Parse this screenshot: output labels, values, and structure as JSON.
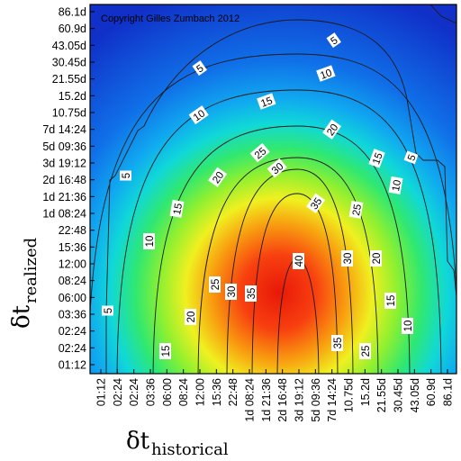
{
  "chart_data": {
    "type": "heatmap",
    "annotation": "Copyright Gilles Zumbach 2012",
    "xlabel": {
      "symbol": "δt",
      "subscript": "historical"
    },
    "ylabel": {
      "symbol": "δt",
      "subscript": "realized"
    },
    "x_ticks": [
      "01:12",
      "02:24",
      "02:24",
      "03:36",
      "06:00",
      "08:24",
      "12:00",
      "15:36",
      "22:48",
      "1d 08:24",
      "1d 21:36",
      "2d 16:48",
      "3d 19:12",
      "5d 09:36",
      "7d 14:24",
      "10.75d",
      "15.2d",
      "21.55d",
      "30.45d",
      "43.05d",
      "60.9d",
      "86.1d"
    ],
    "y_ticks": [
      "86.1d",
      "60.9d",
      "43.05d",
      "30.45d",
      "21.55d",
      "15.2d",
      "10.75d",
      "7d 14:24",
      "5d 09:36",
      "3d 19:12",
      "2d 16:48",
      "1d 21:36",
      "1d 08:24",
      "22:48",
      "15:36",
      "12:00",
      "08:24",
      "06:00",
      "03:36",
      "02:24",
      "02:24",
      "01:12"
    ],
    "contour_levels": [
      5,
      10,
      15,
      20,
      25,
      30,
      35,
      40
    ],
    "contour_labels": [
      {
        "text": "5",
        "x": 0.78,
        "y": -0.22
      },
      {
        "text": "10",
        "x": 11.0,
        "y": 1.62
      },
      {
        "text": "15",
        "x": 2.04,
        "y": 3.9
      },
      {
        "text": "20",
        "x": 0.45,
        "y": 5.95
      },
      {
        "text": "25",
        "x": 1.75,
        "y": 8.32
      },
      {
        "text": "30",
        "x": 2.54,
        "y": 10.17
      },
      {
        "text": "35",
        "x": 4.75,
        "y": 11.6
      },
      {
        "text": "40",
        "x": 0.45,
        "y": 12.25
      },
      {
        "text": "35",
        "x": 3.82,
        "y": 15.65
      },
      {
        "text": "30",
        "x": 1.28,
        "y": 16.4
      },
      {
        "text": "25",
        "x": -2.43,
        "y": 18.43
      },
      {
        "text": "20",
        "x": -2.68,
        "y": 19.1
      },
      {
        "text": "15",
        "x": -3.9,
        "y": 19.28
      },
      {
        "text": "10",
        "x": -6.05,
        "y": 20.32
      },
      {
        "text": "5",
        "x": 0.2,
        "y": 21.1
      },
      {
        "text": "5",
        "x": -5.98,
        "y": 17.57
      },
      {
        "text": "10",
        "x": -3.3,
        "y": 14.35
      },
      {
        "text": "15",
        "x": -2.38,
        "y": 11.65
      },
      {
        "text": "20",
        "x": -0.22,
        "y": 10.13
      },
      {
        "text": "25",
        "x": 0.75,
        "y": 9.13
      },
      {
        "text": "30",
        "x": 0.68,
        "y": 8.38
      },
      {
        "text": "35",
        "x": 0.52,
        "y": 7.45
      },
      {
        "text": "40",
        "x": 0.49,
        "y": 6.55
      },
      {
        "text": "35",
        "x": 2.04,
        "y": 4.98
      },
      {
        "text": "30",
        "x": 1.52,
        "y": 3.92
      },
      {
        "text": "25",
        "x": 1.98,
        "y": 2.6
      },
      {
        "text": "20",
        "x": 1.78,
        "y": 1.65
      },
      {
        "text": "15",
        "x": 1.3,
        "y": 0.85
      },
      {
        "text": "5",
        "x": 9.5,
        "y": 6.5
      },
      {
        "text": "5",
        "x": 3.5,
        "y": 4.5
      }
    ],
    "colorscale": [
      "#1030c8",
      "#1060e8",
      "#10a8f0",
      "#20e0d0",
      "#40f080",
      "#a0f030",
      "#f0f020",
      "#f8b010",
      "#f86010",
      "#e82010"
    ]
  }
}
